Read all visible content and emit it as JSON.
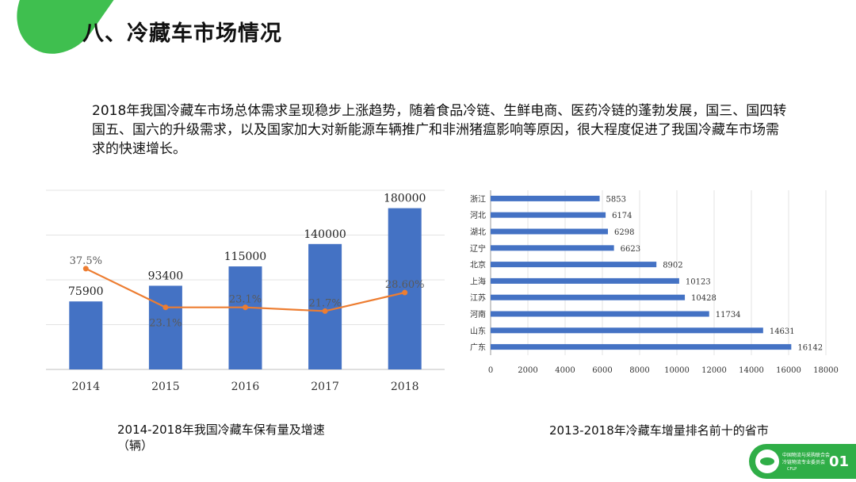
{
  "header": {
    "title": "八、冷藏车市场情况"
  },
  "intro": {
    "text": "2018年我国冷藏车市场总体需求呈现稳步上涨趋势，随着食品冷链、生鲜电商、医药冷链的蓬勃发展，国三、国四转国五、国六的升级需求，以及国家加大对新能源车辆推广和非洲猪瘟影响等原因，很大程度促进了我国冷藏车市场需求的快速增长。"
  },
  "captions": {
    "chart1_line1": "2014-2018年我国冷藏车保有量及增速",
    "chart1_line2": "（辆）",
    "chart2": "2013-2018年冷藏车增量排名前十的省市"
  },
  "footer": {
    "org_line1": "中国物流与采购联合会",
    "org_line2": "冷链物流专业委员会",
    "org_line3": "CFLP",
    "page": "01"
  },
  "colors": {
    "bar": "#4472c4",
    "line": "#ed7d31",
    "accent": "#3fbf4f"
  },
  "chart_data": [
    {
      "type": "bar",
      "categories": [
        "2014",
        "2015",
        "2016",
        "2017",
        "2018"
      ],
      "series": [
        {
          "values": [
            75900,
            93400,
            115000,
            140000,
            180000
          ],
          "labels": [
            "75900",
            "93400",
            "115000",
            "140000",
            "180000"
          ]
        },
        {
          "type": "line",
          "values": [
            37.5,
            23.1,
            23.1,
            21.7,
            28.6
          ],
          "labels": [
            "37.5%",
            "23.1%",
            "23.1%",
            "21.7%",
            "28.60%"
          ]
        }
      ],
      "ylim": [
        0,
        200000
      ],
      "grid": true
    },
    {
      "type": "bar",
      "orientation": "horizontal",
      "categories": [
        "浙江",
        "河北",
        "湖北",
        "辽宁",
        "北京",
        "上海",
        "江苏",
        "河南",
        "山东",
        "广东"
      ],
      "values": [
        5853,
        6174,
        6298,
        6623,
        8902,
        10123,
        10428,
        11734,
        14631,
        16142
      ],
      "xticks": [
        "0",
        "2000",
        "4000",
        "6000",
        "8000",
        "10000",
        "12000",
        "14000",
        "16000",
        "18000"
      ],
      "xlim": [
        0,
        18000
      ],
      "grid": true
    }
  ]
}
